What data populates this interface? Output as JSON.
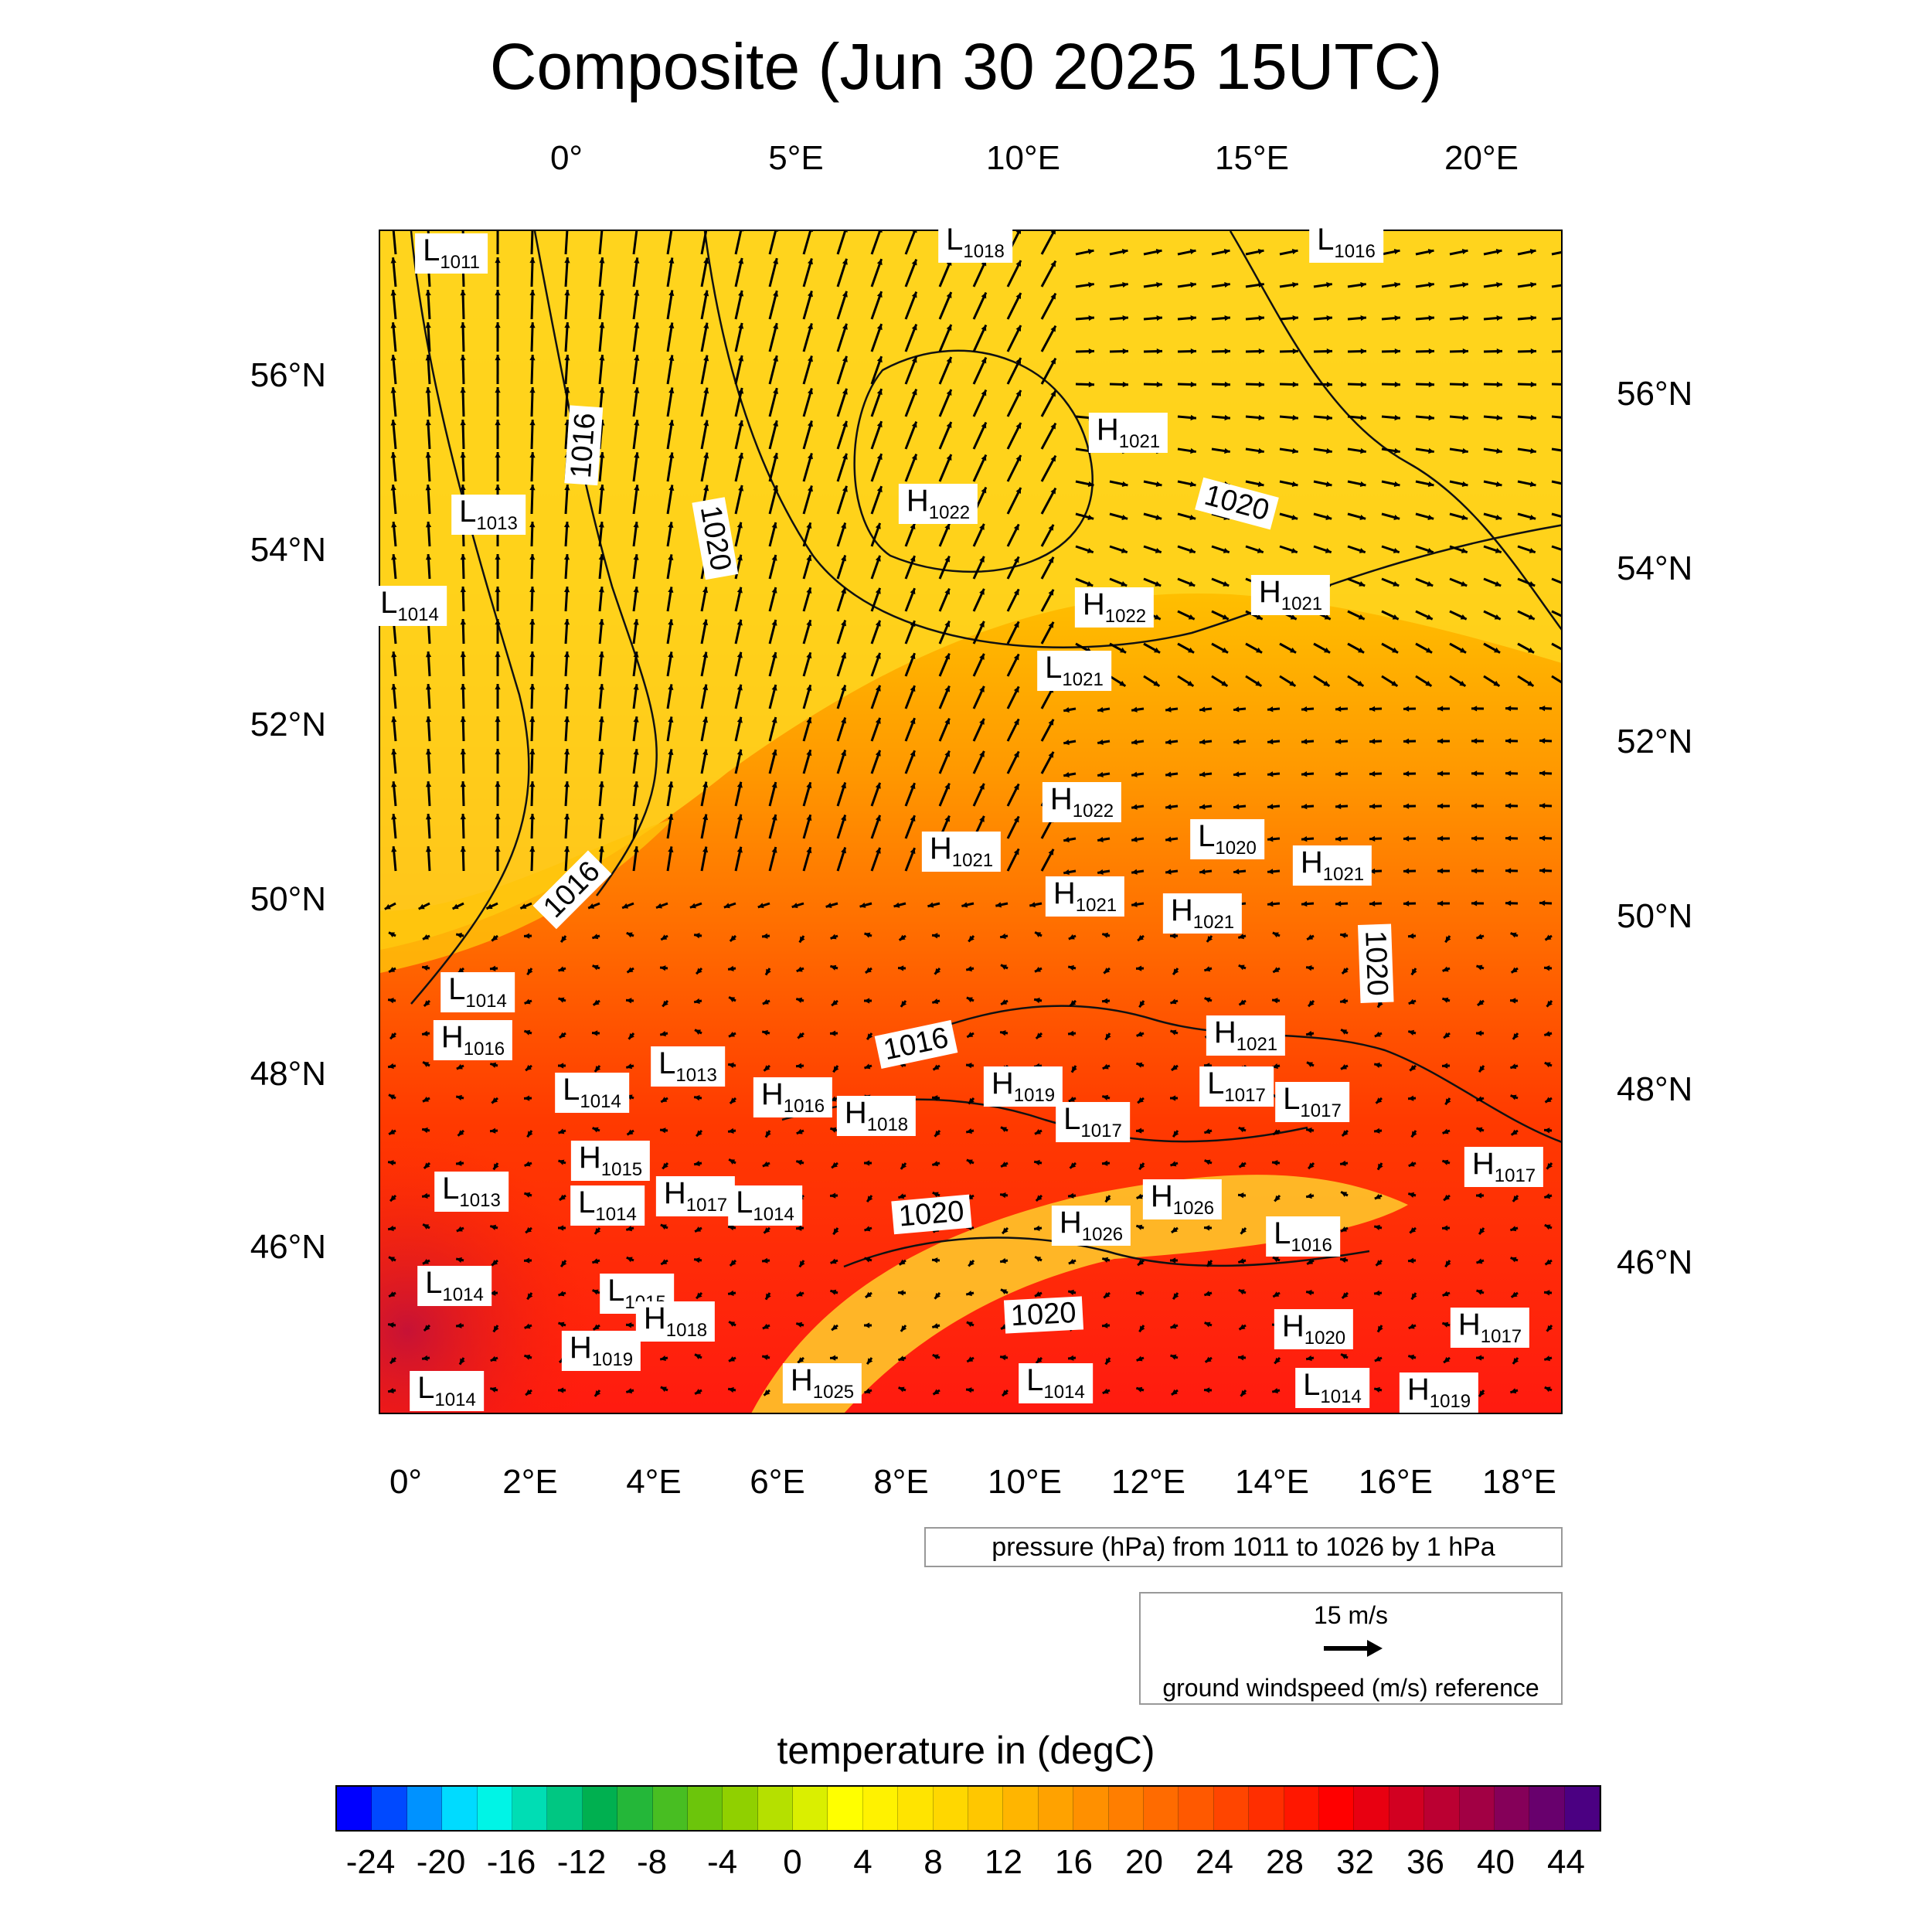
{
  "title": "Composite (Jun 30 2025 15UTC)",
  "top_lon_labels": [
    "0°",
    "5°E",
    "10°E",
    "15°E",
    "20°E"
  ],
  "bottom_lon_labels": [
    "0°",
    "2°E",
    "4°E",
    "6°E",
    "8°E",
    "10°E",
    "12°E",
    "14°E",
    "16°E",
    "18°E"
  ],
  "left_lat_labels": [
    "56°N",
    "54°N",
    "52°N",
    "50°N",
    "48°N",
    "46°N"
  ],
  "right_lat_labels": [
    "56°N",
    "54°N",
    "52°N",
    "50°N",
    "48°N",
    "46°N"
  ],
  "pressure_note": "pressure (hPa) from 1011 to 1026 by 1 hPa",
  "wind_reference": {
    "speed": "15 m/s",
    "description": "ground windspeed (m/s) reference"
  },
  "colorbar": {
    "title": "temperature in (degC)",
    "ticks": [
      "-24",
      "-20",
      "-16",
      "-12",
      "-8",
      "-4",
      "0",
      "4",
      "8",
      "12",
      "16",
      "20",
      "24",
      "28",
      "32",
      "36",
      "40",
      "44"
    ],
    "min": -26,
    "max": 46,
    "step": 2,
    "colors": [
      "#0000ff",
      "#00ffff",
      "#00b050",
      "#7ec800",
      "#ffff00",
      "#ffd000",
      "#ff9000",
      "#ff5000",
      "#ff0000",
      "#b0003a",
      "#4b0082"
    ]
  },
  "isobar_labels": [
    "1016",
    "1020",
    "1016",
    "1020",
    "1016",
    "1020",
    "1020",
    "1020"
  ],
  "pressure_centers": [
    {
      "type": "L",
      "value": "1011"
    },
    {
      "type": "L",
      "value": "1018"
    },
    {
      "type": "L",
      "value": "1016"
    },
    {
      "type": "H",
      "value": "1021"
    },
    {
      "type": "H",
      "value": "1022"
    },
    {
      "type": "L",
      "value": "1013"
    },
    {
      "type": "L",
      "value": "1014"
    },
    {
      "type": "H",
      "value": "1022"
    },
    {
      "type": "H",
      "value": "1021"
    },
    {
      "type": "L",
      "value": "1021"
    },
    {
      "type": "H",
      "value": "1022"
    },
    {
      "type": "H",
      "value": "1021"
    },
    {
      "type": "L",
      "value": "1020"
    },
    {
      "type": "H",
      "value": "1021"
    },
    {
      "type": "H",
      "value": "1021"
    },
    {
      "type": "H",
      "value": "1021"
    },
    {
      "type": "L",
      "value": "1014"
    },
    {
      "type": "H",
      "value": "1016"
    },
    {
      "type": "H",
      "value": "1021"
    },
    {
      "type": "L",
      "value": "1013"
    },
    {
      "type": "L",
      "value": "1014"
    },
    {
      "type": "H",
      "value": "1016"
    },
    {
      "type": "H",
      "value": "1018"
    },
    {
      "type": "H",
      "value": "1019"
    },
    {
      "type": "L",
      "value": "1017"
    },
    {
      "type": "L",
      "value": "1017"
    },
    {
      "type": "L",
      "value": "1017"
    },
    {
      "type": "H",
      "value": "1015"
    },
    {
      "type": "H",
      "value": "1017"
    },
    {
      "type": "L",
      "value": "1013"
    },
    {
      "type": "L",
      "value": "1014"
    },
    {
      "type": "H",
      "value": "1017"
    },
    {
      "type": "L",
      "value": "1014"
    },
    {
      "type": "H",
      "value": "1026"
    },
    {
      "type": "H",
      "value": "1026"
    },
    {
      "type": "L",
      "value": "1016"
    },
    {
      "type": "L",
      "value": "1014"
    },
    {
      "type": "L",
      "value": "1015"
    },
    {
      "type": "H",
      "value": "1018"
    },
    {
      "type": "H",
      "value": "1020"
    },
    {
      "type": "H",
      "value": "1017"
    },
    {
      "type": "H",
      "value": "1019"
    },
    {
      "type": "H",
      "value": "1025"
    },
    {
      "type": "L",
      "value": "1014"
    },
    {
      "type": "L",
      "value": "1014"
    },
    {
      "type": "H",
      "value": "1019"
    },
    {
      "type": "L",
      "value": "1014"
    }
  ]
}
